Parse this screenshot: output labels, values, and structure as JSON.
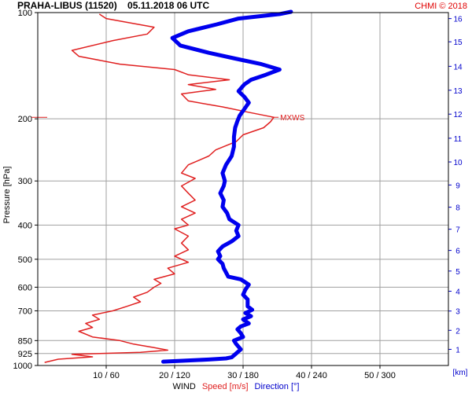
{
  "header": {
    "title": "PRAHA-LIBUS (11520)    05.11.2018 06 UTC",
    "credit": "CHMI © 2018"
  },
  "chart_data": {
    "type": "line",
    "title": "PRAHA-LIBUS (11520)    05.11.2018 06 UTC",
    "ylabel": "Pressure [hPa]",
    "xlabel": {
      "wind": "WIND",
      "speed": "Speed [m/s]",
      "direction": "Direction [°]"
    },
    "y_scale": "log",
    "y_reversed": true,
    "ylim": [
      1000,
      100
    ],
    "pressure_ticks": [
      {
        "value": 100,
        "label": "100"
      },
      {
        "value": 200,
        "label": "200"
      },
      {
        "value": 300,
        "label": "300"
      },
      {
        "value": 400,
        "label": "400"
      },
      {
        "value": 500,
        "label": "500"
      },
      {
        "value": 600,
        "label": "600"
      },
      {
        "value": 700,
        "label": "700"
      },
      {
        "value": 850,
        "label": "850"
      },
      {
        "value": 925,
        "label": "925"
      },
      {
        "value": 1000,
        "label": "1000"
      }
    ],
    "speed_range": [
      0,
      60
    ],
    "x_ticks": [
      {
        "speed": 10,
        "label": "10 / 60"
      },
      {
        "speed": 20,
        "label": "20 / 120"
      },
      {
        "speed": 30,
        "label": "30 / 180"
      },
      {
        "speed": 40,
        "label": "40 / 240"
      },
      {
        "speed": 50,
        "label": "50 / 300"
      }
    ],
    "height_axis": {
      "label": "[km]",
      "ticks": [
        {
          "p": 900,
          "label": "1"
        },
        {
          "p": 795,
          "label": "2"
        },
        {
          "p": 701,
          "label": "3"
        },
        {
          "p": 616,
          "label": "4"
        },
        {
          "p": 540,
          "label": "5"
        },
        {
          "p": 472,
          "label": "6"
        },
        {
          "p": 411,
          "label": "7"
        },
        {
          "p": 356,
          "label": "8"
        },
        {
          "p": 308,
          "label": "9"
        },
        {
          "p": 265,
          "label": "10"
        },
        {
          "p": 227,
          "label": "11"
        },
        {
          "p": 194,
          "label": "12"
        },
        {
          "p": 166,
          "label": "13"
        },
        {
          "p": 142,
          "label": "14"
        },
        {
          "p": 121,
          "label": "15"
        },
        {
          "p": 104,
          "label": "16"
        }
      ]
    },
    "annotations": [
      {
        "text": "MXWS",
        "p": 198,
        "speed": 34.5
      }
    ],
    "grid": true,
    "series": [
      {
        "name": "Speed [m/s]",
        "color": "#e02020",
        "points": [
          [
            980,
            1
          ],
          [
            960,
            3
          ],
          [
            945,
            8
          ],
          [
            930,
            5
          ],
          [
            918,
            15
          ],
          [
            905,
            19
          ],
          [
            890,
            17
          ],
          [
            870,
            14
          ],
          [
            850,
            12
          ],
          [
            830,
            8
          ],
          [
            800,
            6
          ],
          [
            780,
            8
          ],
          [
            760,
            7
          ],
          [
            740,
            9
          ],
          [
            720,
            8
          ],
          [
            700,
            11
          ],
          [
            680,
            13
          ],
          [
            660,
            15
          ],
          [
            640,
            14
          ],
          [
            620,
            16
          ],
          [
            600,
            17
          ],
          [
            585,
            18
          ],
          [
            570,
            17
          ],
          [
            550,
            20
          ],
          [
            530,
            19
          ],
          [
            510,
            22
          ],
          [
            490,
            20
          ],
          [
            470,
            22
          ],
          [
            450,
            21
          ],
          [
            430,
            22
          ],
          [
            410,
            20
          ],
          [
            400,
            22
          ],
          [
            385,
            21
          ],
          [
            370,
            23
          ],
          [
            355,
            21
          ],
          [
            340,
            23
          ],
          [
            325,
            22
          ],
          [
            310,
            21
          ],
          [
            295,
            23
          ],
          [
            285,
            21
          ],
          [
            270,
            22
          ],
          [
            255,
            25
          ],
          [
            245,
            26
          ],
          [
            232,
            29
          ],
          [
            222,
            30
          ],
          [
            212,
            33
          ],
          [
            204,
            34
          ],
          [
            198,
            34.5
          ],
          [
            192,
            31
          ],
          [
            185,
            27
          ],
          [
            178,
            22
          ],
          [
            170,
            21
          ],
          [
            165,
            26
          ],
          [
            160,
            22
          ],
          [
            155,
            28
          ],
          [
            150,
            22
          ],
          [
            145,
            20
          ],
          [
            140,
            12
          ],
          [
            133,
            6
          ],
          [
            128,
            5
          ],
          [
            120,
            11
          ],
          [
            115,
            16
          ],
          [
            110,
            17
          ],
          [
            104,
            10
          ],
          [
            101,
            9
          ]
        ]
      },
      {
        "name": "Direction [°]",
        "color": "#0000ee",
        "points": [
          [
            975,
            110
          ],
          [
            962,
            150
          ],
          [
            955,
            165
          ],
          [
            948,
            170
          ],
          [
            930,
            173
          ],
          [
            900,
            178
          ],
          [
            870,
            174
          ],
          [
            850,
            172
          ],
          [
            830,
            180
          ],
          [
            810,
            178
          ],
          [
            790,
            175
          ],
          [
            775,
            178
          ],
          [
            760,
            185
          ],
          [
            740,
            180
          ],
          [
            725,
            187
          ],
          [
            710,
            182
          ],
          [
            695,
            188
          ],
          [
            680,
            184
          ],
          [
            665,
            184
          ],
          [
            650,
            184
          ],
          [
            630,
            180
          ],
          [
            610,
            182
          ],
          [
            590,
            185
          ],
          [
            570,
            178
          ],
          [
            560,
            167
          ],
          [
            545,
            165
          ],
          [
            530,
            163
          ],
          [
            515,
            162
          ],
          [
            500,
            158
          ],
          [
            490,
            160
          ],
          [
            475,
            158
          ],
          [
            460,
            162
          ],
          [
            445,
            170
          ],
          [
            430,
            176
          ],
          [
            415,
            174
          ],
          [
            400,
            176
          ],
          [
            385,
            168
          ],
          [
            370,
            166
          ],
          [
            355,
            162
          ],
          [
            340,
            163
          ],
          [
            325,
            160
          ],
          [
            310,
            163
          ],
          [
            300,
            164
          ],
          [
            285,
            162
          ],
          [
            270,
            165
          ],
          [
            255,
            170
          ],
          [
            240,
            172
          ],
          [
            225,
            172
          ],
          [
            212,
            173
          ],
          [
            203,
            175
          ],
          [
            196,
            177
          ],
          [
            188,
            181
          ],
          [
            180,
            185
          ],
          [
            173,
            181
          ],
          [
            167,
            176
          ],
          [
            160,
            181
          ],
          [
            155,
            187
          ],
          [
            150,
            200
          ],
          [
            145,
            212
          ],
          [
            140,
            196
          ],
          [
            135,
            173
          ],
          [
            130,
            150
          ],
          [
            124,
            125
          ],
          [
            118,
            118
          ],
          [
            113,
            132
          ],
          [
            108,
            157
          ],
          [
            104,
            176
          ],
          [
            101,
            212
          ],
          [
            99.5,
            222
          ]
        ]
      }
    ]
  }
}
